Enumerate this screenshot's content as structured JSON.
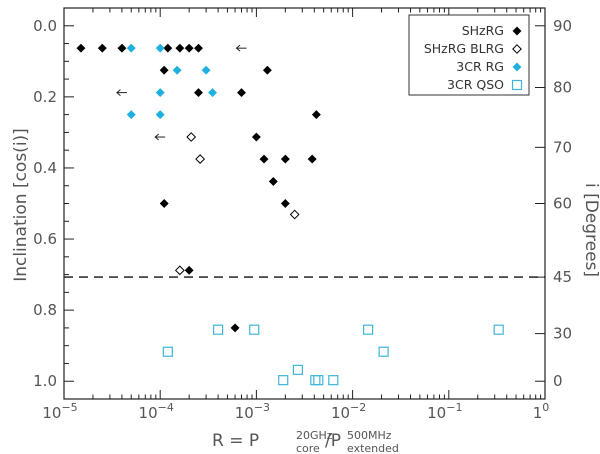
{
  "chart_data": {
    "type": "scatter",
    "xscale": "log",
    "xlim": [
      1e-05,
      1
    ],
    "ylim": [
      1.05,
      -0.05
    ],
    "ylabel": "Inclination  [cos(i)]",
    "xlabel": {
      "prefix": "R = P",
      "sub1": "core",
      "sup1": "20GHz",
      "mid": "/P",
      "sub2": "extended",
      "sup2": "500MHz"
    },
    "xticks": [
      {
        "value": 1e-05,
        "base": "10",
        "exp": "−5"
      },
      {
        "value": 0.0001,
        "base": "10",
        "exp": "−4"
      },
      {
        "value": 0.001,
        "base": "10",
        "exp": "−3"
      },
      {
        "value": 0.01,
        "base": "10",
        "exp": "−2"
      },
      {
        "value": 0.1,
        "base": "10",
        "exp": "−1"
      },
      {
        "value": 1,
        "base": "1",
        "exp": "0"
      }
    ],
    "yticks": [
      {
        "value": 0.0,
        "label": "0.0"
      },
      {
        "value": 0.2,
        "label": "0.2"
      },
      {
        "value": 0.4,
        "label": "0.4"
      },
      {
        "value": 0.6,
        "label": "0.6"
      },
      {
        "value": 0.8,
        "label": "0.8"
      },
      {
        "value": 1.0,
        "label": "1.0"
      }
    ],
    "right_axis": {
      "label": "i  [Degrees]",
      "ticks": [
        {
          "deg": 90,
          "label": "90"
        },
        {
          "deg": 80,
          "label": "80"
        },
        {
          "deg": 70,
          "label": "70"
        },
        {
          "deg": 60,
          "label": "60"
        },
        {
          "deg": 45,
          "label": "45"
        },
        {
          "deg": 30,
          "label": "30"
        },
        {
          "deg": 0,
          "label": "0"
        }
      ]
    },
    "reference_line": {
      "y": 0.707,
      "style": "dashed",
      "color": "#111111"
    },
    "legend_position": "top-right",
    "series": [
      {
        "name": "SHzRG",
        "marker": "diamond-filled",
        "color": "#000000",
        "points": [
          [
            1.5e-05,
            0.063
          ],
          [
            2.5e-05,
            0.063
          ],
          [
            4e-05,
            0.063
          ],
          [
            0.00012,
            0.063
          ],
          [
            0.00016,
            0.063
          ],
          [
            0.0002,
            0.063
          ],
          [
            0.00025,
            0.063
          ],
          [
            0.00011,
            0.125
          ],
          [
            0.0013,
            0.125
          ],
          [
            0.00025,
            0.188
          ],
          [
            0.0007,
            0.188
          ],
          [
            0.0042,
            0.25
          ],
          [
            0.001,
            0.313
          ],
          [
            0.0012,
            0.375
          ],
          [
            0.002,
            0.375
          ],
          [
            0.0038,
            0.375
          ],
          [
            0.0015,
            0.438
          ],
          [
            0.00011,
            0.5
          ],
          [
            0.002,
            0.5
          ],
          [
            0.0002,
            0.688
          ],
          [
            0.0006,
            0.85
          ]
        ]
      },
      {
        "name": "SHzRG  BLRG",
        "marker": "diamond-open",
        "color": "#000000",
        "points": [
          [
            0.00021,
            0.313
          ],
          [
            0.00026,
            0.375
          ],
          [
            0.0025,
            0.531
          ],
          [
            0.00016,
            0.688
          ]
        ]
      },
      {
        "name": "3CR  RG",
        "marker": "diamond-filled",
        "color": "#1fb0e0",
        "points": [
          [
            5e-05,
            0.063
          ],
          [
            0.0001,
            0.063
          ],
          [
            0.00015,
            0.125
          ],
          [
            0.0003,
            0.125
          ],
          [
            0.00035,
            0.188
          ],
          [
            0.0001,
            0.188
          ],
          [
            5e-05,
            0.25
          ],
          [
            0.0001,
            0.25
          ]
        ]
      },
      {
        "name": "3CR  QSO",
        "marker": "square-open",
        "color": "#3fb6d8",
        "points": [
          [
            0.00012,
            0.917
          ],
          [
            0.0004,
            0.855
          ],
          [
            0.00095,
            0.855
          ],
          [
            0.0145,
            0.855
          ],
          [
            0.33,
            0.855
          ],
          [
            0.021,
            0.917
          ],
          [
            0.0027,
            0.968
          ],
          [
            0.0019,
            0.997
          ],
          [
            0.0041,
            0.997
          ],
          [
            0.0044,
            0.997
          ],
          [
            0.0063,
            0.997
          ]
        ]
      }
    ],
    "annotations": [
      {
        "type": "left-arrow",
        "x": 0.0007,
        "y": 0.063
      },
      {
        "type": "left-arrow",
        "x": 4e-05,
        "y": 0.188
      },
      {
        "type": "left-arrow",
        "x": 0.0001,
        "y": 0.313
      }
    ]
  }
}
